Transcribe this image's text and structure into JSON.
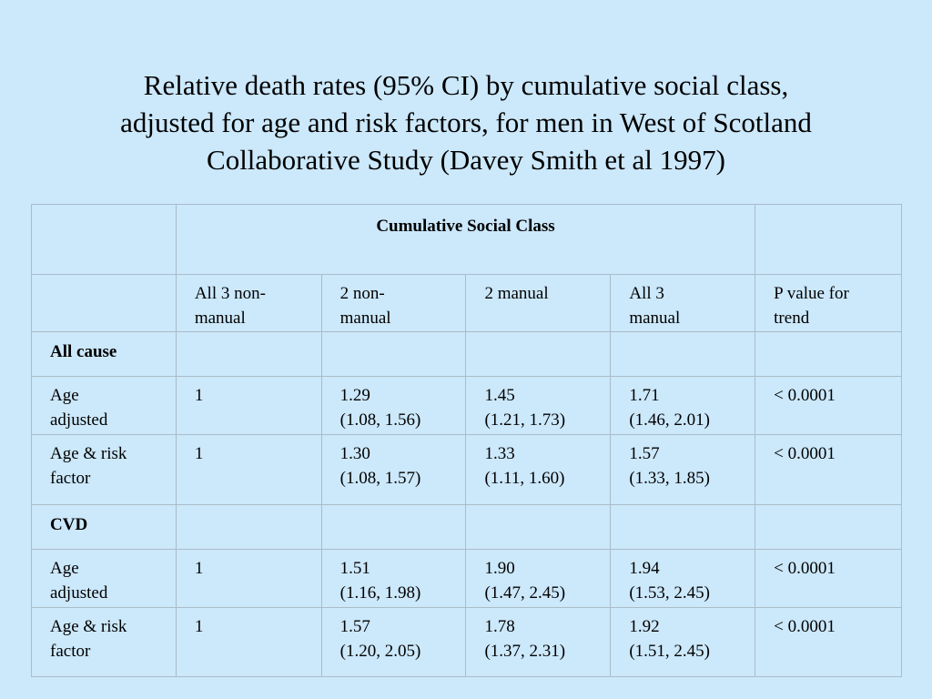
{
  "title": {
    "line1": "Relative death rates (95% CI) by cumulative social class,",
    "line2": "adjusted for age and risk factors, for men in West of Scotland",
    "line3": "Collaborative Study (Davey Smith et al 1997)"
  },
  "table": {
    "group_header": "Cumulative Social Class",
    "columns": [
      {
        "line1": "All 3 non-",
        "line2": "manual"
      },
      {
        "line1": "2 non-",
        "line2": "manual"
      },
      {
        "line1": "2 manual",
        "line2": ""
      },
      {
        "line1": "All 3",
        "line2": "manual"
      },
      {
        "line1": "P value for",
        "line2": "trend"
      }
    ],
    "sections": [
      {
        "name": "All cause",
        "rows": [
          {
            "label1": "Age",
            "label2": "adjusted",
            "c1": "1",
            "c2a": "1.29",
            "c2b": "(1.08, 1.56)",
            "c3a": "1.45",
            "c3b": "(1.21, 1.73)",
            "c4a": "1.71",
            "c4b": "(1.46, 2.01)",
            "p": "< 0.0001"
          },
          {
            "label1": "Age & risk",
            "label2": "factor",
            "c1": "1",
            "c2a": "1.30",
            "c2b": "(1.08, 1.57)",
            "c3a": "1.33",
            "c3b": "(1.11, 1.60)",
            "c4a": "1.57",
            "c4b": "(1.33, 1.85)",
            "p": "< 0.0001"
          }
        ]
      },
      {
        "name": "CVD",
        "rows": [
          {
            "label1": "Age",
            "label2": "adjusted",
            "c1": "1",
            "c2a": "1.51",
            "c2b": "(1.16, 1.98)",
            "c3a": "1.90",
            "c3b": "(1.47, 2.45)",
            "c4a": "1.94",
            "c4b": "(1.53, 2.45)",
            "p": "< 0.0001"
          },
          {
            "label1": "Age & risk",
            "label2": "factor",
            "c1": "1",
            "c2a": "1.57",
            "c2b": "(1.20, 2.05)",
            "c3a": "1.78",
            "c3b": "(1.37, 2.31)",
            "c4a": "1.92",
            "c4b": "(1.51, 2.45)",
            "p": "< 0.0001"
          }
        ]
      }
    ]
  }
}
